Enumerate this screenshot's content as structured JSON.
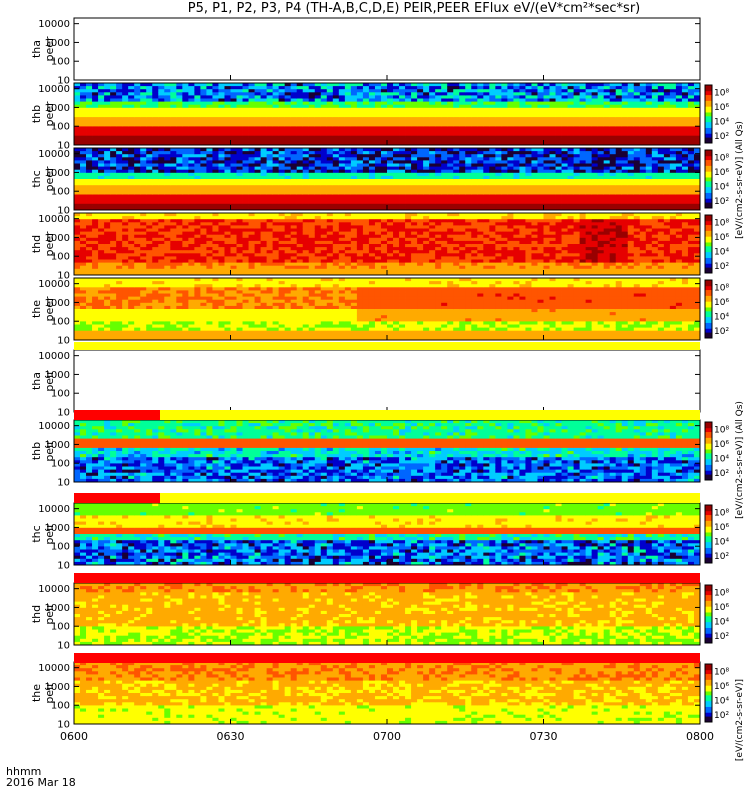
{
  "title": "P5, P1, P2, P3, P4 (TH-A,B,C,D,E) PEIR,PEER EFlux eV/(eV*cm²*sec*sr)",
  "footer": {
    "time_label": "hhmm",
    "date_label": "2016 Mar 18"
  },
  "x_tick_labels": [
    "0600",
    "0630",
    "0700",
    "0730",
    "0800"
  ],
  "y_tick_labels": [
    "10",
    "100",
    "1000",
    "10000"
  ],
  "colorbar_tick_labels": [
    "10²",
    "10⁴",
    "10⁶",
    "10⁸"
  ],
  "side_labels": {
    "peer_all": "[eV/(cm2-s-sr-eV)] (All Qs)",
    "peir_all": "[eV/(cm2-s-sr-eV)] (All Qs)",
    "peer_units": "[eV/(cm2-s-sr-eV)]",
    "peir_units": "[eV/(cm2-s-sr-eV)]"
  },
  "colors": {
    "quality_bar_red": "#ff0000",
    "quality_bar_yellow": "#ffff00",
    "colormap": [
      "#1a0033",
      "#0000cc",
      "#0066ff",
      "#00ccff",
      "#00ff99",
      "#66ff00",
      "#ffff00",
      "#ffaa00",
      "#ff5500",
      "#e60000",
      "#990000"
    ]
  },
  "chart_data": {
    "type": "heatmap",
    "x_range": [
      "0600",
      "0800"
    ],
    "y_scale": "log",
    "y_range": [
      10,
      20000
    ],
    "panels": [
      {
        "probe": "tha",
        "species": "peer",
        "label_line1": "tha",
        "label_line2": "peer",
        "has_data": false,
        "colorbar": false
      },
      {
        "probe": "thb",
        "species": "peer",
        "label_line1": "thb",
        "label_line2": "peer",
        "has_data": true,
        "colorbar": true
      },
      {
        "probe": "thc",
        "species": "peer",
        "label_line1": "thc",
        "label_line2": "peer",
        "has_data": true,
        "colorbar": true
      },
      {
        "probe": "thd",
        "species": "peer",
        "label_line1": "thd",
        "label_line2": "peer",
        "has_data": true,
        "colorbar": true
      },
      {
        "probe": "the",
        "species": "peer",
        "label_line1": "the",
        "label_line2": "peer",
        "has_data": true,
        "colorbar": true
      },
      {
        "probe": "tha",
        "species": "peir",
        "label_line1": "tha",
        "label_line2": "peir",
        "has_data": false,
        "colorbar": false
      },
      {
        "probe": "thb",
        "species": "peir",
        "label_line1": "thb",
        "label_line2": "peir",
        "has_data": true,
        "colorbar": true
      },
      {
        "probe": "thc",
        "species": "peir",
        "label_line1": "thc",
        "label_line2": "peir",
        "has_data": true,
        "colorbar": true
      },
      {
        "probe": "thd",
        "species": "peir",
        "label_line1": "thd",
        "label_line2": "peir",
        "has_data": true,
        "colorbar": true
      },
      {
        "probe": "the",
        "species": "peir",
        "label_line1": "the",
        "label_line2": "peir",
        "has_data": true,
        "colorbar": true
      }
    ]
  }
}
